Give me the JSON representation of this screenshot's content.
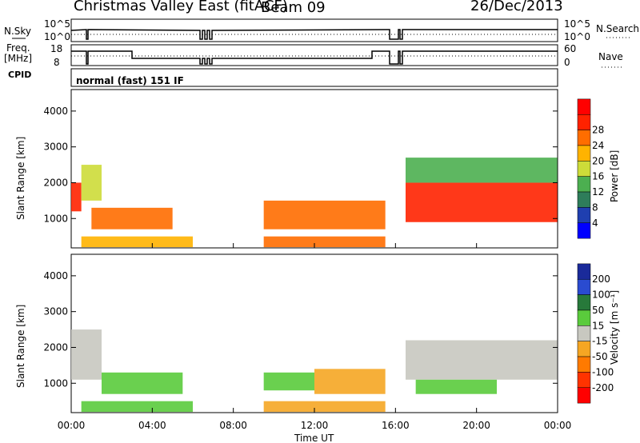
{
  "header": {
    "title": "Christmas Valley East (fitACF)",
    "beam": "Beam 09",
    "date": "26/Dec/2013"
  },
  "strip": {
    "nsky_label": "N.Sky",
    "nsearch_label": "N.Search",
    "freq_label": "Freq.",
    "freq_unit": "[MHz]",
    "nave_label": "Nave",
    "cpid_label": "CPID",
    "cpid_text": "normal (fast) 151 IF",
    "noise_ticks_left": [
      "10^5",
      "10^0"
    ],
    "noise_ticks_right": [
      "10^5",
      "10^0"
    ],
    "freq_ticks": [
      "18",
      "8"
    ],
    "nave_ticks": [
      "60",
      "0"
    ]
  },
  "colors": {
    "power_scale": [
      "#0000ff",
      "#1f3fb0",
      "#2e7d5a",
      "#4caf50",
      "#cddc39",
      "#ffb300",
      "#ff6d00",
      "#ff2200",
      "#ff0000"
    ],
    "velocity_scale": [
      "#1a2a9a",
      "#2a4bd0",
      "#27793a",
      "#5acb3c",
      "#c8c8c0",
      "#f5a623",
      "#ff7a00",
      "#ff3300",
      "#ff0000"
    ]
  },
  "chart_data": [
    {
      "type": "heatmap",
      "title": "",
      "xlabel": "",
      "ylabel": "Slant Range [km]",
      "xlim": [
        "00:00",
        "00:00"
      ],
      "ylim": [
        180,
        4600
      ],
      "y_ticks": [
        "1000",
        "2000",
        "3000",
        "4000"
      ],
      "colorbar": {
        "label": "Power [dB]",
        "ticks": [
          "4",
          "8",
          "12",
          "16",
          "20",
          "24",
          "28"
        ],
        "range": [
          0,
          30
        ]
      },
      "regions": [
        {
          "t_start": "00:00",
          "t_end": "00:30",
          "range_km": [
            1200,
            2000
          ],
          "level_db": 24
        },
        {
          "t_start": "00:30",
          "t_end": "01:30",
          "range_km": [
            1500,
            2500
          ],
          "level_db": 14
        },
        {
          "t_start": "01:00",
          "t_end": "05:00",
          "range_km": [
            700,
            1300
          ],
          "level_db": 20
        },
        {
          "t_start": "00:30",
          "t_end": "06:00",
          "range_km": [
            200,
            500
          ],
          "level_db": 18
        },
        {
          "t_start": "09:30",
          "t_end": "15:30",
          "range_km": [
            700,
            1500
          ],
          "level_db": 22
        },
        {
          "t_start": "09:30",
          "t_end": "15:30",
          "range_km": [
            200,
            500
          ],
          "level_db": 20
        },
        {
          "t_start": "16:30",
          "t_end": "23:59",
          "range_km": [
            900,
            2000
          ],
          "level_db": 26
        },
        {
          "t_start": "16:30",
          "t_end": "23:59",
          "range_km": [
            2000,
            2700
          ],
          "level_db": 12
        }
      ]
    },
    {
      "type": "heatmap",
      "title": "",
      "xlabel": "Time UT",
      "ylabel": "Slant Range [km]",
      "x_ticks": [
        "00:00",
        "04:00",
        "08:00",
        "12:00",
        "16:00",
        "20:00",
        "00:00"
      ],
      "ylim": [
        180,
        4600
      ],
      "y_ticks": [
        "1000",
        "2000",
        "3000",
        "4000"
      ],
      "colorbar": {
        "label": "Velocity [m s⁻¹]",
        "ticks": [
          "200",
          "100",
          "50",
          "15",
          "-15",
          "-50",
          "-100",
          "-200"
        ],
        "range": [
          -250,
          250
        ]
      },
      "regions": [
        {
          "t_start": "00:00",
          "t_end": "01:30",
          "range_km": [
            1100,
            2500
          ],
          "level_ms": 0
        },
        {
          "t_start": "01:30",
          "t_end": "05:30",
          "range_km": [
            700,
            1300
          ],
          "level_ms": 60
        },
        {
          "t_start": "00:30",
          "t_end": "06:00",
          "range_km": [
            200,
            500
          ],
          "level_ms": 60
        },
        {
          "t_start": "09:30",
          "t_end": "12:00",
          "range_km": [
            800,
            1300
          ],
          "level_ms": 30
        },
        {
          "t_start": "12:00",
          "t_end": "15:30",
          "range_km": [
            700,
            1400
          ],
          "level_ms": -40
        },
        {
          "t_start": "09:30",
          "t_end": "15:30",
          "range_km": [
            200,
            500
          ],
          "level_ms": -40
        },
        {
          "t_start": "16:30",
          "t_end": "23:59",
          "range_km": [
            1100,
            2200
          ],
          "level_ms": 0
        },
        {
          "t_start": "17:00",
          "t_end": "21:00",
          "range_km": [
            700,
            1100
          ],
          "level_ms": 60
        }
      ]
    }
  ]
}
